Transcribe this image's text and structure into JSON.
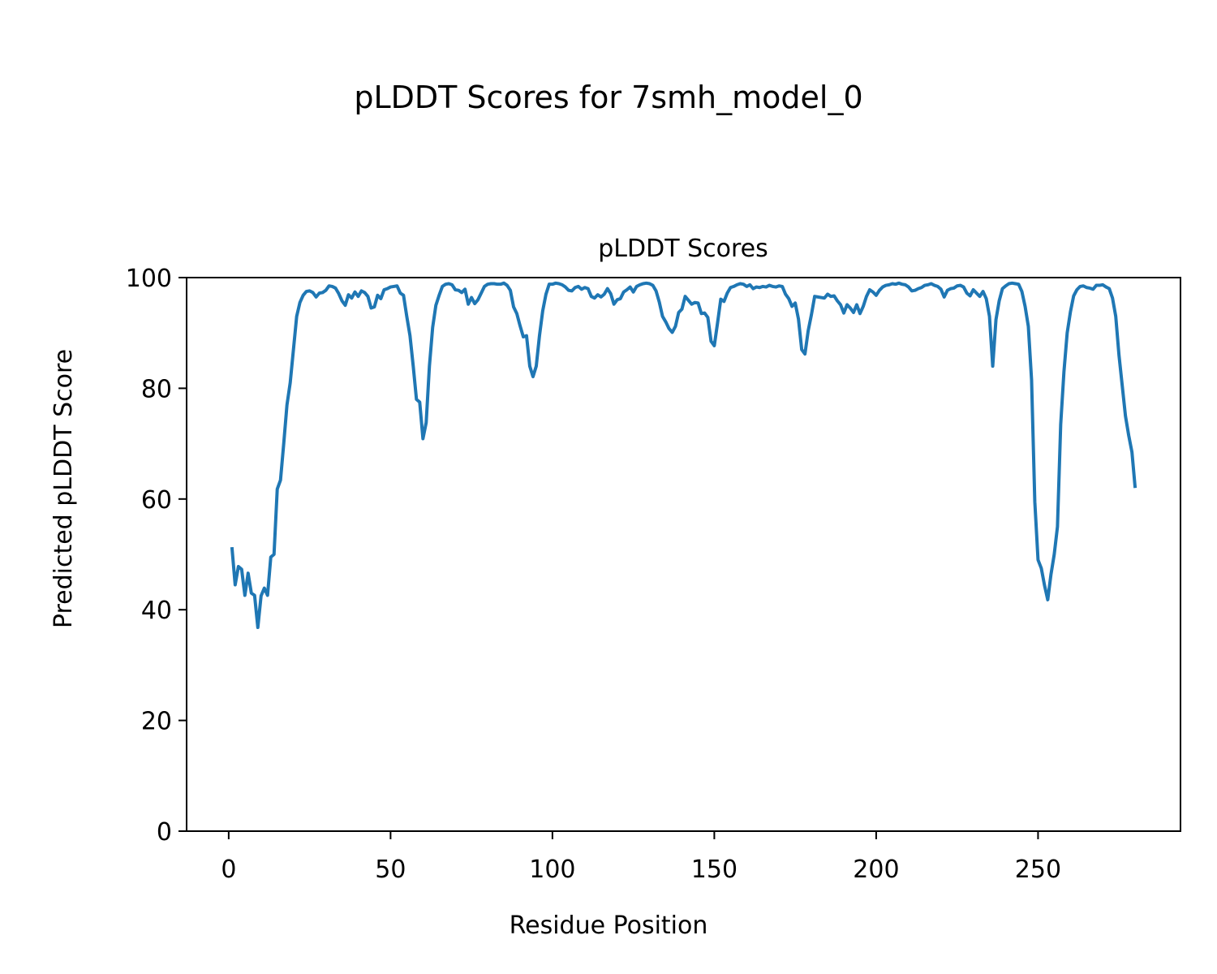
{
  "chart_data": {
    "type": "line",
    "suptitle": "pLDDT Scores for 7smh_model_0",
    "title": "pLDDT Scores",
    "xlabel": "Residue Position",
    "ylabel": "Predicted pLDDT Score",
    "xlim": [
      -13,
      294
    ],
    "ylim": [
      0,
      100
    ],
    "xticks": [
      0,
      50,
      100,
      150,
      200,
      250
    ],
    "yticks": [
      0,
      20,
      40,
      60,
      80,
      100
    ],
    "grid": false,
    "series": [
      {
        "color": "#1f77b4",
        "x": [
          1,
          2,
          3,
          4,
          5,
          6,
          7,
          8,
          9,
          10,
          11,
          12,
          13,
          14,
          15,
          16,
          17,
          18,
          19,
          20,
          21,
          22,
          23,
          24,
          25,
          26,
          27,
          28,
          29,
          30,
          31,
          32,
          33,
          34,
          35,
          36,
          37,
          38,
          39,
          40,
          41,
          42,
          43,
          44,
          45,
          46,
          47,
          48,
          49,
          50,
          51,
          52,
          53,
          54,
          55,
          56,
          57,
          58,
          59,
          60,
          61,
          62,
          63,
          64,
          65,
          66,
          67,
          68,
          69,
          70,
          71,
          72,
          73,
          74,
          75,
          76,
          77,
          78,
          79,
          80,
          81,
          82,
          83,
          84,
          85,
          86,
          87,
          88,
          89,
          90,
          91,
          92,
          93,
          94,
          95,
          96,
          97,
          98,
          99,
          100,
          101,
          102,
          103,
          104,
          105,
          106,
          107,
          108,
          109,
          110,
          111,
          112,
          113,
          114,
          115,
          116,
          117,
          118,
          119,
          120,
          121,
          122,
          123,
          124,
          125,
          126,
          127,
          128,
          129,
          130,
          131,
          132,
          133,
          134,
          135,
          136,
          137,
          138,
          139,
          140,
          141,
          142,
          143,
          144,
          145,
          146,
          147,
          148,
          149,
          150,
          151,
          152,
          153,
          154,
          155,
          156,
          157,
          158,
          159,
          160,
          161,
          162,
          163,
          164,
          165,
          166,
          167,
          168,
          169,
          170,
          171,
          172,
          173,
          174,
          175,
          176,
          177,
          178,
          179,
          180,
          181,
          182,
          183,
          184,
          185,
          186,
          187,
          188,
          189,
          190,
          191,
          192,
          193,
          194,
          195,
          196,
          197,
          198,
          199,
          200,
          201,
          202,
          203,
          204,
          205,
          206,
          207,
          208,
          209,
          210,
          211,
          212,
          213,
          214,
          215,
          216,
          217,
          218,
          219,
          220,
          221,
          222,
          223,
          224,
          225,
          226,
          227,
          228,
          229,
          230,
          231,
          232,
          233,
          234,
          235,
          236,
          237,
          238,
          239,
          240,
          241,
          242,
          243,
          244,
          245,
          246,
          247,
          248,
          249,
          250,
          251,
          252,
          253,
          254,
          255,
          256,
          257,
          258,
          259,
          260,
          261,
          262,
          263,
          264,
          265,
          266,
          267,
          268,
          269,
          270,
          271,
          272,
          273,
          274,
          275,
          276,
          277,
          278,
          279,
          280
        ],
        "y": [
          51.3,
          44.5,
          47.8,
          47.3,
          42.6,
          46.6,
          43.0,
          42.6,
          36.8,
          42.5,
          43.9,
          42.6,
          49.5,
          50.0,
          61.8,
          63.4,
          70.0,
          77.0,
          81.0,
          87.0,
          93.0,
          95.5,
          96.8,
          97.5,
          97.6,
          97.3,
          96.5,
          97.2,
          97.3,
          97.7,
          98.5,
          98.4,
          98.1,
          97.1,
          95.8,
          95.0,
          96.9,
          96.3,
          97.4,
          96.6,
          97.6,
          97.3,
          96.6,
          94.5,
          94.7,
          96.8,
          96.2,
          97.8,
          98.0,
          98.3,
          98.4,
          98.5,
          97.2,
          96.8,
          93.0,
          89.5,
          84.0,
          78.0,
          77.5,
          70.9,
          73.8,
          84.0,
          91.0,
          95.0,
          96.8,
          98.4,
          98.8,
          98.9,
          98.7,
          97.8,
          97.7,
          97.3,
          97.9,
          95.2,
          96.4,
          95.3,
          96.0,
          97.2,
          98.4,
          98.8,
          98.9,
          98.9,
          98.8,
          98.8,
          99.0,
          98.6,
          97.7,
          94.7,
          93.5,
          91.3,
          89.3,
          89.5,
          84.0,
          82.1,
          84.0,
          89.5,
          94.0,
          97.0,
          98.8,
          98.8,
          99.0,
          98.9,
          98.7,
          98.3,
          97.7,
          97.6,
          98.2,
          98.4,
          97.9,
          98.2,
          98.0,
          96.6,
          96.3,
          96.9,
          96.5,
          97.0,
          98.0,
          97.1,
          95.2,
          96.0,
          96.2,
          97.4,
          97.8,
          98.3,
          97.4,
          98.4,
          98.7,
          98.9,
          99.0,
          98.9,
          98.6,
          97.6,
          95.6,
          93.0,
          92.0,
          90.8,
          90.1,
          91.2,
          93.7,
          94.3,
          96.6,
          95.9,
          95.2,
          95.5,
          95.4,
          93.5,
          93.6,
          92.8,
          88.5,
          87.7,
          91.8,
          96.1,
          95.7,
          97.2,
          98.2,
          98.4,
          98.7,
          98.9,
          98.8,
          98.4,
          98.7,
          98.0,
          98.3,
          98.2,
          98.4,
          98.3,
          98.6,
          98.4,
          98.3,
          98.5,
          98.4,
          97.0,
          96.2,
          94.8,
          95.4,
          92.5,
          87.0,
          86.2,
          90.4,
          93.3,
          96.6,
          96.5,
          96.4,
          96.3,
          97.0,
          96.6,
          96.7,
          95.8,
          95.1,
          93.6,
          95.1,
          94.5,
          93.7,
          95.1,
          93.5,
          94.8,
          96.6,
          97.8,
          97.4,
          96.8,
          97.7,
          98.3,
          98.6,
          98.7,
          98.9,
          98.8,
          99.0,
          98.8,
          98.7,
          98.3,
          97.6,
          97.7,
          98.0,
          98.2,
          98.6,
          98.7,
          98.9,
          98.6,
          98.4,
          97.9,
          96.5,
          97.7,
          98.0,
          98.1,
          98.5,
          98.6,
          98.3,
          97.2,
          96.7,
          97.8,
          97.2,
          96.6,
          97.5,
          96.2,
          93.0,
          84.0,
          92.4,
          95.8,
          98.0,
          98.5,
          98.9,
          99.0,
          98.9,
          98.8,
          97.5,
          94.8,
          91.2,
          81.5,
          59.5,
          49.0,
          47.5,
          44.4,
          41.8,
          46.4,
          50.0,
          55.0,
          73.5,
          83.0,
          90.0,
          93.8,
          96.7,
          97.8,
          98.4,
          98.5,
          98.2,
          98.1,
          97.9,
          98.6,
          98.6,
          98.7,
          98.3,
          98.0,
          96.3,
          93.0,
          86.0,
          80.5,
          75.0,
          71.5,
          68.5,
          62.0
        ]
      }
    ]
  }
}
